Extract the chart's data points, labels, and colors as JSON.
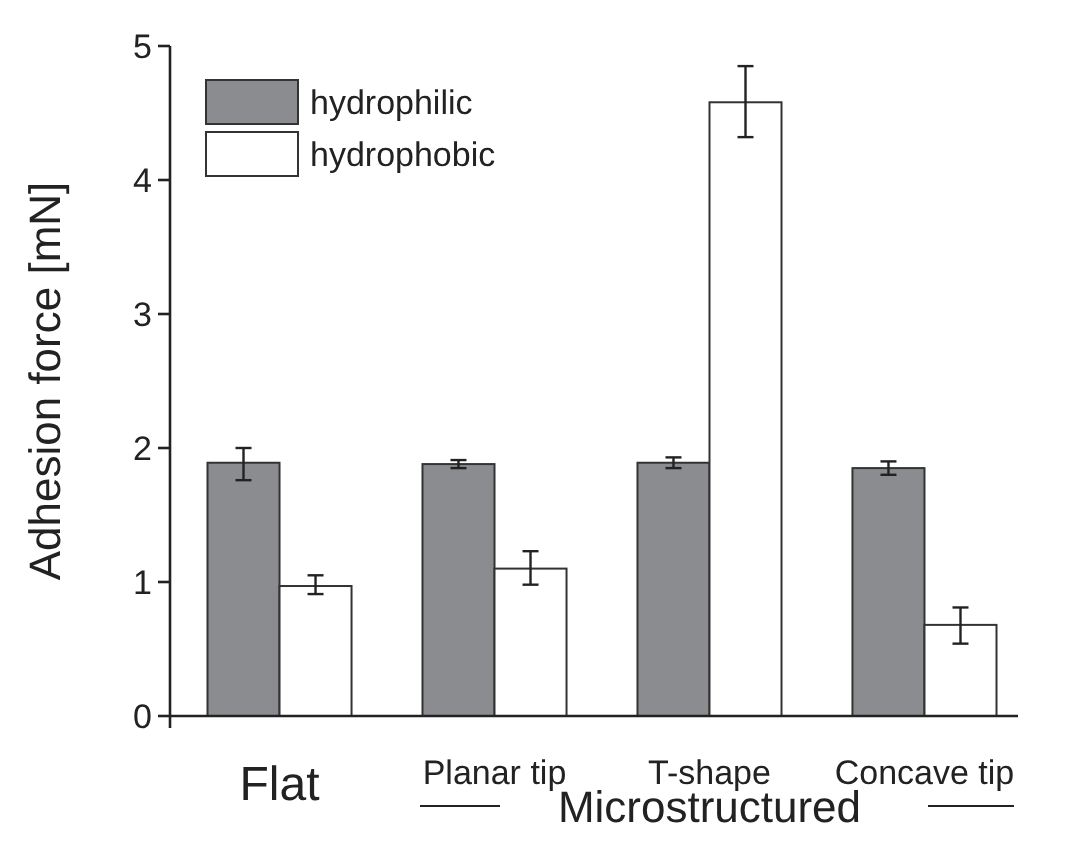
{
  "chart_data": {
    "type": "bar",
    "ylabel": "Adhesion force [mN]",
    "xlabel": "Microstructured",
    "categories": [
      "Flat",
      "Planar tip",
      "T-shape",
      "Concave tip"
    ],
    "series": [
      {
        "name": "hydrophilic",
        "color": "#8b8c8f",
        "values": [
          1.89,
          1.88,
          1.89,
          1.85
        ],
        "errors": [
          [
            1.76,
            2.0
          ],
          [
            1.85,
            1.91
          ],
          [
            1.85,
            1.93
          ],
          [
            1.8,
            1.9
          ]
        ]
      },
      {
        "name": "hydrophobic",
        "color": "#ffffff",
        "values": [
          0.97,
          1.1,
          4.58,
          0.68
        ],
        "errors": [
          [
            0.91,
            1.05
          ],
          [
            0.98,
            1.23
          ],
          [
            4.32,
            4.85
          ],
          [
            0.54,
            0.81
          ]
        ]
      }
    ],
    "ylim": [
      0,
      5
    ],
    "yticks": [
      0,
      1,
      2,
      3,
      4,
      5
    ],
    "grid": false,
    "legend": "top left"
  }
}
